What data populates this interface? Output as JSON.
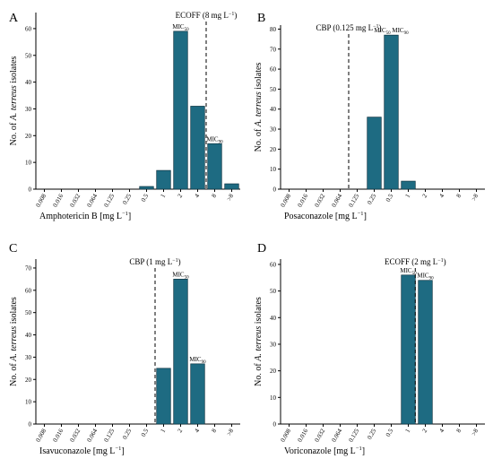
{
  "figure": {
    "colors": {
      "bar": "#1e6b82",
      "bar_stroke": "#0d3442",
      "axis": "#000000"
    },
    "y_label_parts": [
      "No. of ",
      "A. terreus",
      " isolates"
    ]
  },
  "chart_data": [
    {
      "type": "bar",
      "panel_letter": "A",
      "categories": [
        "0.008",
        "0.016",
        "0.032",
        "0.064",
        "0.125",
        "0.25",
        "0.5",
        "1",
        "2",
        "4",
        "8",
        ">8"
      ],
      "values": [
        0,
        0,
        0,
        0,
        0,
        0,
        1,
        7,
        59,
        31,
        17,
        2
      ],
      "xlabel_main": "Amphotericin B [mg L",
      "xlabel_sup": "−1",
      "xlabel_end": "]",
      "ylim": [
        0,
        66
      ],
      "yticks": [
        0,
        10,
        20,
        30,
        40,
        50,
        60
      ],
      "ref_line": {
        "after_category": "4",
        "pos": "middle",
        "text_main": "ECOFF (8 mg L",
        "text_sup": "−1",
        "text_end": ")"
      },
      "annotations": [
        {
          "category": "2",
          "main": "MIC",
          "sub": "50"
        },
        {
          "category": "8",
          "main": "MIC",
          "sub": "90"
        }
      ]
    },
    {
      "type": "bar",
      "panel_letter": "B",
      "categories": [
        "0.008",
        "0.016",
        "0.032",
        "0.064",
        "0.125",
        "0.25",
        "0.5",
        "1",
        "2",
        "4",
        "8",
        ">8"
      ],
      "values": [
        0,
        0,
        0,
        0,
        0,
        36,
        77,
        4,
        0,
        0,
        0,
        0
      ],
      "xlabel_main": "Posaconazole [mg L",
      "xlabel_sup": "−1",
      "xlabel_end": "]",
      "ylim": [
        0,
        82
      ],
      "yticks": [
        0,
        10,
        20,
        30,
        40,
        50,
        60,
        70,
        80
      ],
      "ref_line": {
        "after_category": "0.064",
        "pos": "middle",
        "text_main": "CBP (0.125 mg L",
        "text_sup": "−1",
        "text_end": ")"
      },
      "annotations": [
        {
          "category": "0.5",
          "main": "MIC",
          "sub": "50",
          "main2": " MIC",
          "sub2": "90"
        }
      ]
    },
    {
      "type": "bar",
      "panel_letter": "C",
      "categories": [
        "0.008",
        "0.016",
        "0.032",
        "0.064",
        "0.125",
        "0.25",
        "0.5",
        "1",
        "2",
        "4",
        "8",
        ">8"
      ],
      "values": [
        0,
        0,
        0,
        0,
        0,
        0,
        0,
        25,
        65,
        27,
        0,
        0
      ],
      "xlabel_main": "Isavuconazole [mg L",
      "xlabel_sup": "−1",
      "xlabel_end": "]",
      "ylim": [
        0,
        74
      ],
      "yticks": [
        0,
        10,
        20,
        30,
        40,
        50,
        60,
        70
      ],
      "ref_line": {
        "after_category": "0.5",
        "pos": "middle",
        "text_main": "CBP (1 mg L",
        "text_sup": "−1",
        "text_end": ")"
      },
      "annotations": [
        {
          "category": "2",
          "main": "MIC",
          "sub": "50"
        },
        {
          "category": "4",
          "main": "MIC",
          "sub": "90"
        }
      ]
    },
    {
      "type": "bar",
      "panel_letter": "D",
      "categories": [
        "0.008",
        "0.016",
        "0.032",
        "0.064",
        "0.125",
        "0.25",
        "0.5",
        "1",
        "2",
        "4",
        "8",
        ">8"
      ],
      "values": [
        0,
        0,
        0,
        0,
        0,
        0,
        0,
        56,
        54,
        0,
        0,
        0
      ],
      "xlabel_main": "Voriconazole [mg L",
      "xlabel_sup": "−1",
      "xlabel_end": "]",
      "ylim": [
        0,
        62
      ],
      "yticks": [
        0,
        10,
        20,
        30,
        40,
        50,
        60
      ],
      "ref_line": {
        "after_category": "1",
        "pos": "end",
        "text_main": "ECOFF (2 mg L",
        "text_sup": "−1",
        "text_end": ")"
      },
      "annotations": [
        {
          "category": "1",
          "main": "MIC",
          "sub": "50"
        },
        {
          "category": "2",
          "main": "MIC",
          "sub": "90"
        }
      ]
    }
  ]
}
